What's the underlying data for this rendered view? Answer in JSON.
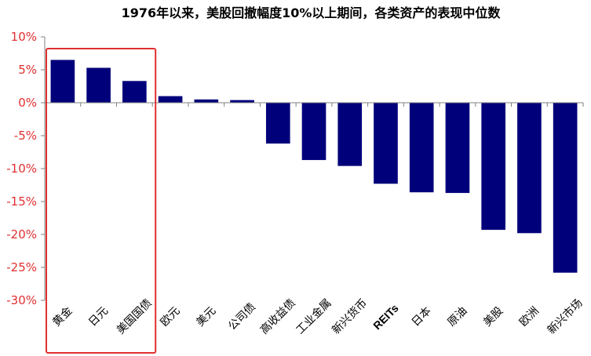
{
  "chart_data": {
    "type": "bar",
    "title": "1976年以来，美股回撤幅度10%以上期间，各类资产的表现中位数",
    "xlabel": "",
    "ylabel": "",
    "categories": [
      "黄金",
      "日元",
      "美国国债",
      "欧元",
      "美元",
      "公司债",
      "高收益债",
      "工业金属",
      "新兴货币",
      "REITs",
      "日本",
      "原油",
      "美股",
      "欧洲",
      "新兴市场"
    ],
    "values": [
      6.5,
      5.3,
      3.3,
      1.0,
      0.5,
      0.4,
      -6.2,
      -8.7,
      -9.6,
      -12.3,
      -13.6,
      -13.7,
      -19.3,
      -19.8,
      -25.8
    ],
    "yticks": [
      "10%",
      "5%",
      "0%",
      "-5%",
      "-10%",
      "-15%",
      "-20%",
      "-25%",
      "-30%"
    ],
    "ylim": [
      -30,
      10
    ],
    "grid": false,
    "bar_color": "#00007a",
    "tick_label_color": "#e03030",
    "highlight_box": {
      "categories": [
        "黄金",
        "日元",
        "美国国债"
      ],
      "color": "#e03030"
    }
  }
}
